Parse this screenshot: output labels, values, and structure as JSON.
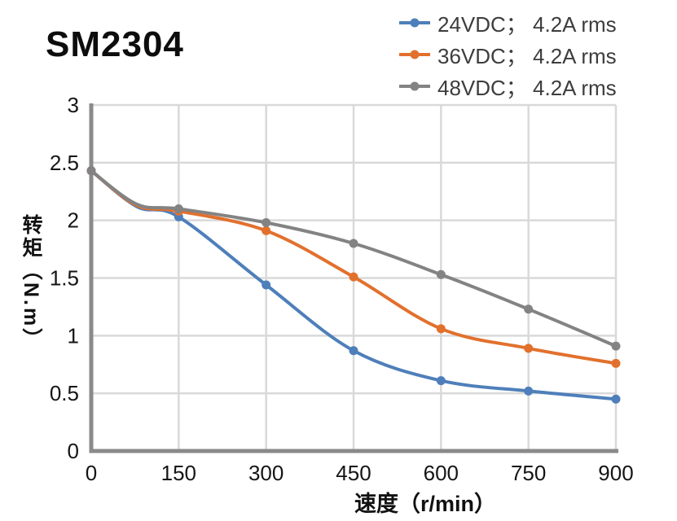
{
  "title": "SM2304",
  "legend": {
    "items": [
      {
        "label": "24VDC； 4.2A rms",
        "color": "#4e7fba"
      },
      {
        "label": "36VDC； 4.2A rms",
        "color": "#e2702d"
      },
      {
        "label": "48VDC； 4.2A rms",
        "color": "#838383"
      }
    ]
  },
  "chart_data": {
    "type": "line",
    "title": "SM2304",
    "xlabel": "速度（r/min）",
    "ylabel": "转矩（N.m）",
    "x": [
      0,
      150,
      300,
      450,
      600,
      750,
      900
    ],
    "x_ticks": [
      0,
      150,
      300,
      450,
      600,
      750,
      900
    ],
    "y_ticks": [
      0,
      0.5,
      1,
      1.5,
      2,
      2.5,
      3
    ],
    "xlim": [
      0,
      900
    ],
    "ylim": [
      0,
      3
    ],
    "grid": true,
    "legend_position": "top-right",
    "series": [
      {
        "name": "24VDC； 4.2A rms",
        "color": "#4e7fba",
        "values": [
          2.43,
          2.03,
          1.44,
          0.87,
          0.61,
          0.52,
          0.45
        ],
        "unmarked_bend_point": {
          "x": 78,
          "y": 2.12
        }
      },
      {
        "name": "36VDC； 4.2A rms",
        "color": "#e2702d",
        "values": [
          2.43,
          2.08,
          1.91,
          1.51,
          1.06,
          0.89,
          0.76
        ],
        "unmarked_bend_point": {
          "x": 78,
          "y": 2.13
        }
      },
      {
        "name": "48VDC； 4.2A rms",
        "color": "#838383",
        "values": [
          2.43,
          2.1,
          1.98,
          1.8,
          1.53,
          1.23,
          0.91
        ],
        "unmarked_bend_point": {
          "x": 78,
          "y": 2.14
        }
      }
    ],
    "style": {
      "grid_color": "#d9d9d9",
      "axis_color": "#8a8a8a",
      "tick_label_color": "#151515",
      "line_width": 4,
      "marker_radius": 5.5
    }
  }
}
